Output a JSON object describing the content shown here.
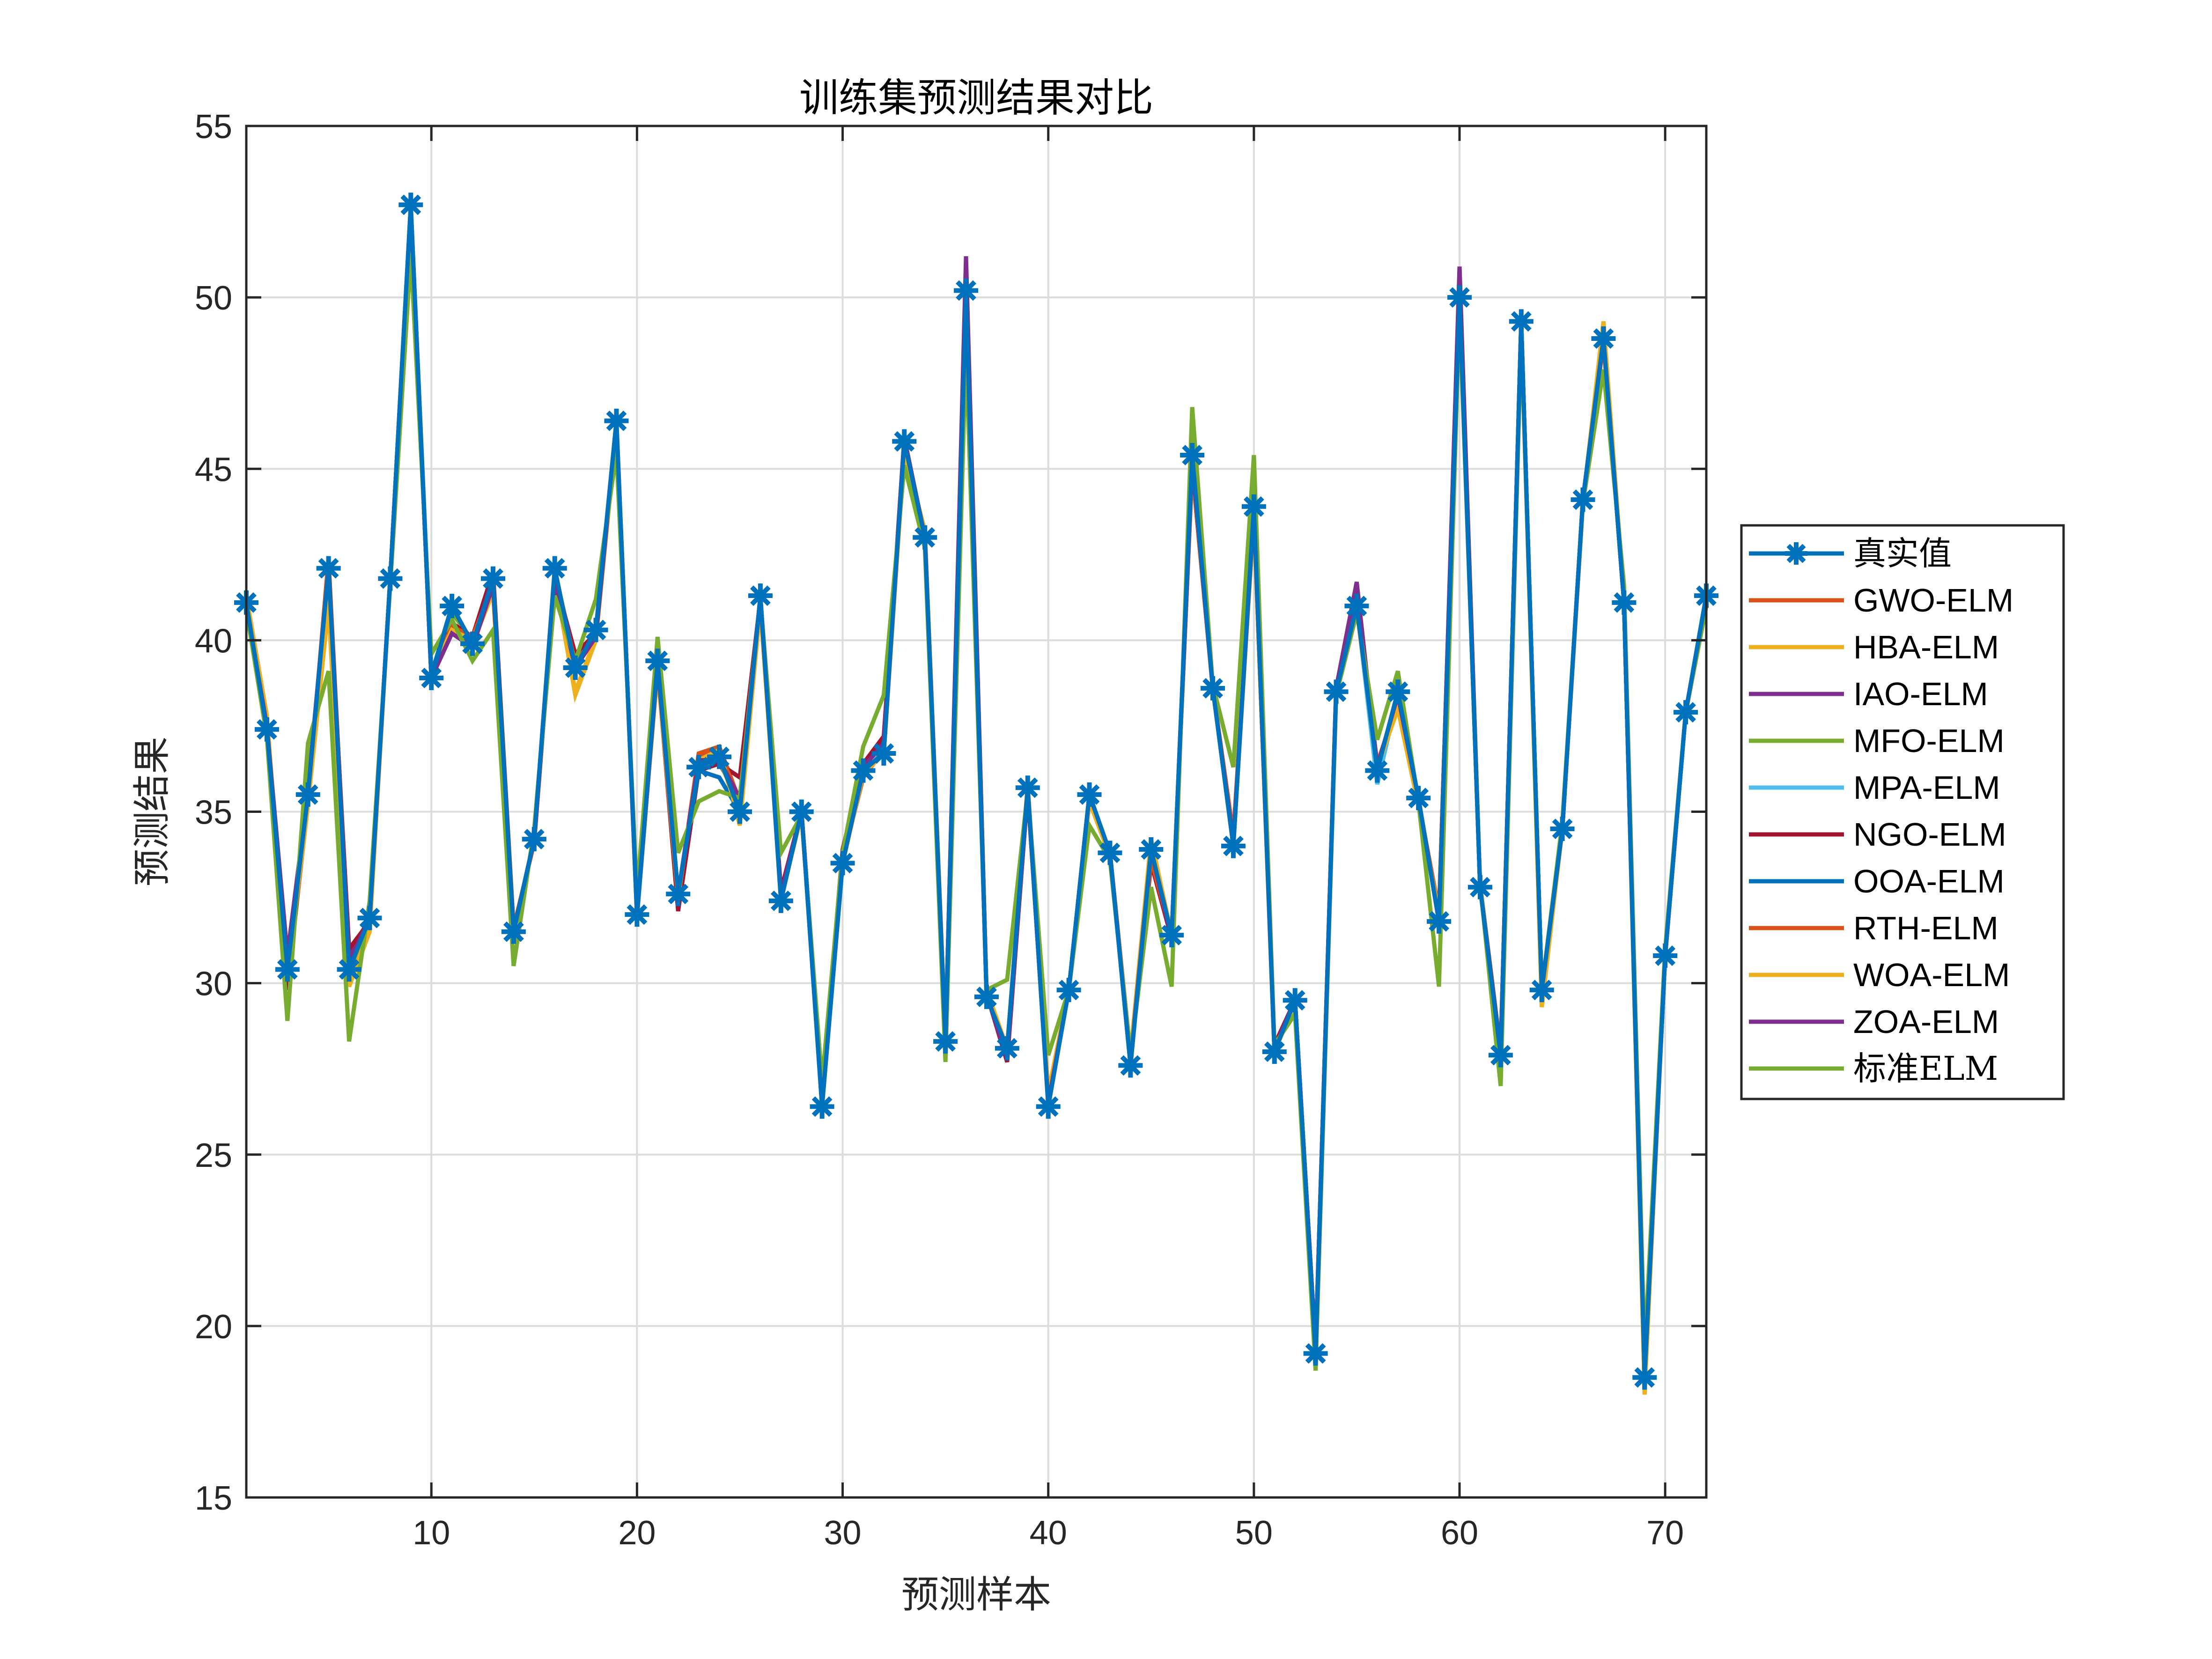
{
  "chart_data": {
    "type": "line",
    "title": "训练集预测结果对比",
    "xlabel": "预测样本",
    "ylabel": "预测结果",
    "xlim": [
      1,
      72
    ],
    "ylim": [
      15,
      55
    ],
    "xticks": [
      10,
      20,
      30,
      40,
      50,
      60,
      70
    ],
    "yticks": [
      15,
      20,
      25,
      30,
      35,
      40,
      45,
      50,
      55
    ],
    "grid": true,
    "legend_position": "right-outside",
    "x": [
      1,
      2,
      3,
      4,
      5,
      6,
      7,
      8,
      9,
      10,
      11,
      12,
      13,
      14,
      15,
      16,
      17,
      18,
      19,
      20,
      21,
      22,
      23,
      24,
      25,
      26,
      27,
      28,
      29,
      30,
      31,
      32,
      33,
      34,
      35,
      36,
      37,
      38,
      39,
      40,
      41,
      42,
      43,
      44,
      45,
      46,
      47,
      48,
      49,
      50,
      51,
      52,
      53,
      54,
      55,
      56,
      57,
      58,
      59,
      60,
      61,
      62,
      63,
      64,
      65,
      66,
      67,
      68,
      69,
      70,
      71,
      72
    ],
    "series": [
      {
        "name": "真实值",
        "color": "#0072BD",
        "marker": "asterisk",
        "values": [
          41.1,
          37.4,
          30.4,
          35.5,
          42.1,
          30.4,
          31.9,
          41.8,
          52.7,
          38.9,
          41.0,
          39.9,
          41.8,
          31.5,
          34.2,
          42.1,
          39.2,
          40.3,
          46.4,
          32.0,
          39.4,
          32.6,
          36.3,
          36.6,
          35.0,
          41.3,
          32.4,
          35.0,
          26.4,
          33.5,
          36.2,
          36.7,
          45.8,
          43.0,
          28.3,
          50.2,
          29.6,
          28.1,
          35.7,
          26.4,
          29.8,
          35.5,
          33.8,
          27.6,
          33.9,
          31.4,
          45.4,
          38.6,
          34.0,
          43.9,
          28.0,
          29.5,
          19.2,
          38.5,
          41.0,
          36.2,
          38.5,
          35.4,
          31.8,
          50.0,
          32.8,
          27.9,
          49.3,
          29.8,
          34.5,
          44.1,
          48.8,
          41.1,
          18.5,
          30.8,
          37.9,
          41.3
        ]
      },
      {
        "name": "GWO-ELM",
        "color": "#D95319",
        "values": [
          41.0,
          37.6,
          30.2,
          35.3,
          42.4,
          30.6,
          31.7,
          41.8,
          52.5,
          39.0,
          40.4,
          40.0,
          41.5,
          31.6,
          34.1,
          42.0,
          39.4,
          40.1,
          46.2,
          32.1,
          39.2,
          32.5,
          36.7,
          36.9,
          35.3,
          41.2,
          32.6,
          34.9,
          26.9,
          33.6,
          36.0,
          36.8,
          45.6,
          43.0,
          28.4,
          50.3,
          29.8,
          28.0,
          35.6,
          26.7,
          29.8,
          35.3,
          33.8,
          27.9,
          33.6,
          31.4,
          45.0,
          38.6,
          34.3,
          43.6,
          28.1,
          29.4,
          19.3,
          38.5,
          41.0,
          36.4,
          38.2,
          35.3,
          32.1,
          50.1,
          32.9,
          28.0,
          49.2,
          29.6,
          34.5,
          44.0,
          48.7,
          41.2,
          18.6,
          30.9,
          37.9,
          41.0
        ]
      },
      {
        "name": "HBA-ELM",
        "color": "#EDB120",
        "values": [
          41.3,
          37.8,
          30.0,
          35.2,
          41.0,
          29.9,
          31.5,
          41.8,
          52.4,
          39.0,
          40.3,
          39.9,
          41.4,
          31.5,
          34.2,
          41.8,
          38.4,
          40.0,
          46.1,
          32.1,
          39.1,
          32.5,
          36.5,
          36.8,
          34.6,
          41.0,
          32.5,
          34.9,
          26.9,
          33.5,
          36.1,
          36.7,
          45.5,
          43.2,
          28.4,
          50.1,
          29.8,
          28.1,
          35.8,
          26.8,
          29.8,
          35.3,
          33.7,
          27.9,
          34.2,
          31.4,
          45.1,
          38.6,
          34.1,
          43.6,
          28.0,
          29.4,
          19.2,
          38.5,
          40.9,
          36.3,
          38.0,
          35.2,
          32.0,
          50.2,
          32.9,
          27.9,
          49.2,
          29.3,
          34.5,
          44.0,
          49.3,
          41.2,
          18.0,
          30.9,
          37.9,
          41.0
        ]
      },
      {
        "name": "IAO-ELM",
        "color": "#7E2F8E",
        "values": [
          41.1,
          37.5,
          30.8,
          35.6,
          42.1,
          30.8,
          31.9,
          41.8,
          52.6,
          38.9,
          40.3,
          40.0,
          41.6,
          31.5,
          34.2,
          41.9,
          39.2,
          40.2,
          46.3,
          32.0,
          39.3,
          32.5,
          36.3,
          36.4,
          35.4,
          41.2,
          32.6,
          35.0,
          26.8,
          33.6,
          36.2,
          37.0,
          45.9,
          43.0,
          28.3,
          51.2,
          29.7,
          27.8,
          35.6,
          26.5,
          29.8,
          35.5,
          33.8,
          27.7,
          33.9,
          31.3,
          45.2,
          38.6,
          34.1,
          43.8,
          28.1,
          29.5,
          19.3,
          38.6,
          41.7,
          36.2,
          38.4,
          35.4,
          31.8,
          50.9,
          32.8,
          28.0,
          49.3,
          29.8,
          34.5,
          44.1,
          48.8,
          41.1,
          18.6,
          30.8,
          37.9,
          41.2
        ]
      },
      {
        "name": "MFO-ELM",
        "color": "#77AC30",
        "values": [
          41.0,
          37.4,
          30.3,
          35.5,
          42.0,
          30.3,
          31.9,
          41.8,
          52.6,
          39.0,
          40.8,
          40.0,
          41.7,
          31.5,
          34.2,
          42.0,
          39.2,
          40.3,
          46.3,
          32.0,
          39.4,
          32.6,
          36.3,
          36.5,
          35.1,
          41.3,
          32.5,
          35.0,
          26.5,
          33.5,
          36.2,
          36.7,
          45.8,
          43.0,
          28.3,
          50.2,
          29.6,
          28.1,
          35.7,
          26.5,
          29.8,
          35.5,
          33.8,
          27.6,
          33.9,
          31.4,
          45.4,
          38.6,
          34.0,
          43.9,
          28.0,
          29.5,
          19.3,
          38.5,
          41.0,
          36.2,
          38.5,
          35.4,
          31.8,
          50.0,
          32.8,
          27.9,
          49.3,
          29.8,
          34.5,
          44.1,
          48.8,
          41.1,
          18.6,
          30.8,
          37.9,
          41.3
        ]
      },
      {
        "name": "MPA-ELM",
        "color": "#4DBEEE",
        "values": [
          41.1,
          37.4,
          30.5,
          35.5,
          42.1,
          30.5,
          31.9,
          41.8,
          52.6,
          39.2,
          40.2,
          39.8,
          41.7,
          31.5,
          34.2,
          42.0,
          39.2,
          40.3,
          46.3,
          31.9,
          39.3,
          32.5,
          36.4,
          36.8,
          35.2,
          41.2,
          32.5,
          35.0,
          26.6,
          33.5,
          36.3,
          36.8,
          45.7,
          43.0,
          28.3,
          50.1,
          29.6,
          28.1,
          35.7,
          26.6,
          29.8,
          35.4,
          33.8,
          27.7,
          33.8,
          31.4,
          45.3,
          38.6,
          34.1,
          43.8,
          28.1,
          29.5,
          19.3,
          38.5,
          41.0,
          35.8,
          38.4,
          35.4,
          31.9,
          50.1,
          32.8,
          28.0,
          49.2,
          29.8,
          34.5,
          44.1,
          48.8,
          41.1,
          18.6,
          30.8,
          37.9,
          41.2
        ]
      },
      {
        "name": "NGO-ELM",
        "color": "#A2142F",
        "values": [
          41.0,
          37.5,
          29.8,
          35.4,
          42.0,
          31.0,
          31.8,
          41.8,
          52.6,
          38.9,
          40.5,
          40.1,
          42.0,
          31.6,
          34.1,
          41.8,
          39.6,
          40.2,
          46.4,
          32.0,
          39.2,
          32.1,
          36.2,
          36.4,
          36.0,
          41.2,
          32.7,
          35.0,
          26.8,
          33.9,
          36.4,
          37.2,
          45.7,
          43.0,
          28.3,
          50.3,
          29.7,
          27.7,
          35.6,
          26.7,
          29.8,
          35.3,
          33.8,
          27.8,
          33.5,
          31.3,
          45.3,
          38.6,
          34.1,
          43.8,
          28.2,
          29.5,
          19.3,
          38.5,
          41.0,
          36.3,
          38.3,
          35.3,
          32.0,
          50.2,
          32.8,
          28.0,
          49.2,
          29.7,
          34.5,
          44.1,
          48.8,
          41.1,
          18.7,
          30.8,
          37.9,
          41.2
        ]
      },
      {
        "name": "OOA-ELM",
        "color": "#0072BD",
        "values": [
          41.1,
          37.4,
          30.4,
          35.5,
          42.0,
          30.4,
          31.9,
          41.8,
          52.7,
          39.0,
          41.0,
          39.9,
          41.8,
          31.5,
          34.2,
          42.0,
          39.2,
          40.3,
          46.3,
          32.0,
          39.4,
          32.6,
          36.2,
          36.0,
          35.0,
          41.3,
          32.5,
          35.0,
          26.4,
          33.5,
          36.2,
          36.7,
          45.8,
          43.0,
          28.3,
          50.2,
          29.6,
          28.1,
          35.7,
          26.5,
          29.8,
          35.5,
          33.8,
          27.6,
          33.9,
          31.4,
          45.4,
          38.6,
          34.0,
          43.9,
          28.0,
          29.5,
          19.2,
          38.5,
          41.0,
          36.2,
          38.5,
          35.4,
          31.8,
          50.0,
          32.8,
          27.9,
          49.3,
          29.8,
          34.5,
          44.1,
          48.8,
          41.1,
          18.5,
          30.8,
          37.9,
          41.3
        ]
      },
      {
        "name": "RTH-ELM",
        "color": "#D95319",
        "values": [
          41.0,
          37.6,
          30.2,
          35.3,
          42.3,
          30.6,
          31.8,
          41.8,
          52.5,
          39.0,
          40.4,
          40.1,
          41.6,
          31.6,
          34.1,
          42.0,
          39.3,
          40.1,
          46.2,
          32.1,
          39.2,
          32.5,
          36.6,
          36.8,
          35.3,
          41.2,
          32.6,
          34.9,
          26.8,
          33.6,
          36.0,
          36.8,
          45.6,
          43.0,
          28.4,
          50.3,
          29.8,
          28.0,
          35.6,
          26.7,
          29.8,
          35.3,
          33.8,
          27.9,
          33.6,
          31.4,
          45.0,
          38.6,
          34.3,
          43.6,
          28.1,
          29.4,
          19.3,
          38.5,
          41.0,
          36.4,
          38.2,
          35.3,
          32.1,
          50.1,
          32.9,
          28.0,
          49.2,
          29.6,
          34.5,
          44.0,
          48.7,
          41.2,
          18.6,
          30.9,
          37.9,
          41.0
        ]
      },
      {
        "name": "WOA-ELM",
        "color": "#EDB120",
        "values": [
          41.2,
          37.7,
          30.1,
          35.3,
          41.5,
          29.9,
          31.6,
          41.8,
          52.4,
          39.0,
          40.3,
          40.0,
          41.5,
          31.5,
          34.2,
          41.9,
          38.5,
          40.1,
          46.1,
          32.1,
          39.1,
          32.5,
          36.5,
          36.8,
          34.7,
          41.0,
          32.5,
          34.9,
          26.9,
          33.5,
          36.1,
          36.7,
          45.5,
          43.2,
          28.4,
          50.1,
          29.8,
          28.1,
          35.8,
          26.8,
          29.8,
          35.3,
          33.7,
          27.9,
          34.2,
          31.4,
          45.1,
          38.6,
          34.1,
          43.6,
          28.0,
          29.4,
          19.2,
          38.5,
          40.9,
          36.3,
          38.0,
          35.2,
          32.0,
          50.2,
          32.9,
          27.9,
          49.2,
          29.3,
          34.5,
          44.0,
          49.3,
          41.2,
          18.0,
          30.9,
          37.9,
          41.0
        ]
      },
      {
        "name": "ZOA-ELM",
        "color": "#7E2F8E",
        "values": [
          41.0,
          37.5,
          30.6,
          35.6,
          42.1,
          30.6,
          31.9,
          41.8,
          52.6,
          38.9,
          40.2,
          39.8,
          41.6,
          31.5,
          34.2,
          41.7,
          39.2,
          40.1,
          46.3,
          32.0,
          39.3,
          32.6,
          36.5,
          36.5,
          35.4,
          41.2,
          32.6,
          35.0,
          26.8,
          33.6,
          36.3,
          37.0,
          45.9,
          43.0,
          28.3,
          51.0,
          29.7,
          27.8,
          35.6,
          26.5,
          29.8,
          35.5,
          33.8,
          27.7,
          33.9,
          31.3,
          45.2,
          38.6,
          34.1,
          43.8,
          28.1,
          29.5,
          19.3,
          38.6,
          41.6,
          36.3,
          38.4,
          35.4,
          31.8,
          50.8,
          32.8,
          28.0,
          49.3,
          29.8,
          34.5,
          44.1,
          48.8,
          41.1,
          18.6,
          30.8,
          37.9,
          41.2
        ]
      },
      {
        "name": "标准ELM",
        "color": "#77AC30",
        "values": [
          40.9,
          37.2,
          28.9,
          37.0,
          39.1,
          28.3,
          32.4,
          41.6,
          51.3,
          39.6,
          40.6,
          39.4,
          40.3,
          30.5,
          34.5,
          41.3,
          39.4,
          41.2,
          45.5,
          32.6,
          40.1,
          33.8,
          35.3,
          35.6,
          35.4,
          41.2,
          33.8,
          34.9,
          27.1,
          33.8,
          36.9,
          38.4,
          45.1,
          42.7,
          27.7,
          48.6,
          29.8,
          30.1,
          35.6,
          27.9,
          29.8,
          34.6,
          33.6,
          27.9,
          32.8,
          29.9,
          46.8,
          38.7,
          36.3,
          45.4,
          28.2,
          29.1,
          18.7,
          38.4,
          40.8,
          37.1,
          39.1,
          35.3,
          29.9,
          49.7,
          32.9,
          27.0,
          49.0,
          29.8,
          34.7,
          44.0,
          47.9,
          41.6,
          19.2,
          31.0,
          37.9,
          41.0
        ]
      }
    ]
  },
  "title": "训练集预测结果对比",
  "xlabel": "预测样本",
  "ylabel": "预测结果",
  "legend": {
    "items": [
      {
        "label": "真实值",
        "color": "#0072BD",
        "marker": "asterisk"
      },
      {
        "label": "GWO-ELM",
        "color": "#D95319"
      },
      {
        "label": "HBA-ELM",
        "color": "#EDB120"
      },
      {
        "label": "IAO-ELM",
        "color": "#7E2F8E"
      },
      {
        "label": "MFO-ELM",
        "color": "#77AC30"
      },
      {
        "label": "MPA-ELM",
        "color": "#4DBEEE"
      },
      {
        "label": "NGO-ELM",
        "color": "#A2142F"
      },
      {
        "label": "OOA-ELM",
        "color": "#0072BD"
      },
      {
        "label": "RTH-ELM",
        "color": "#D95319"
      },
      {
        "label": "WOA-ELM",
        "color": "#EDB120"
      },
      {
        "label": "ZOA-ELM",
        "color": "#7E2F8E"
      },
      {
        "label": "标准ELM",
        "color": "#77AC30"
      }
    ]
  },
  "axes": {
    "xticks": [
      "10",
      "20",
      "30",
      "40",
      "50",
      "60",
      "70"
    ],
    "yticks": [
      "15",
      "20",
      "25",
      "30",
      "35",
      "40",
      "45",
      "50",
      "55"
    ]
  }
}
